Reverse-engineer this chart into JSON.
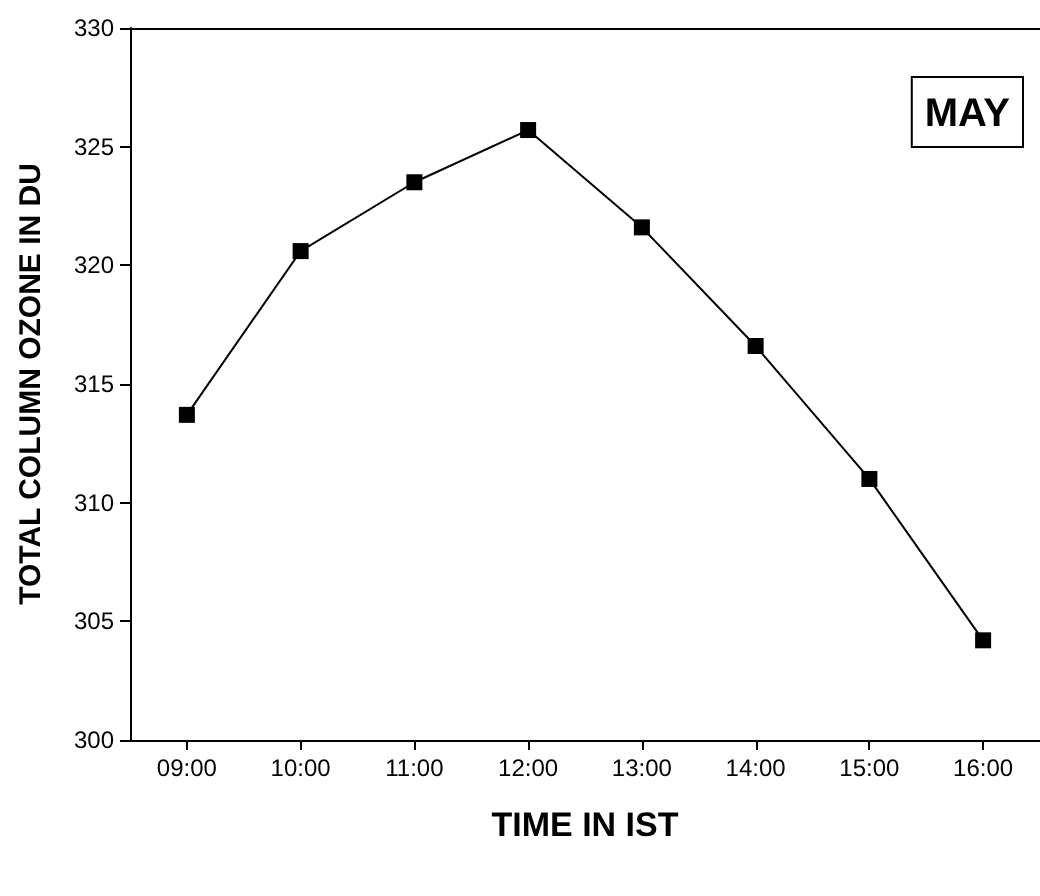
{
  "chart_data": {
    "type": "line",
    "xlabel": "TIME IN IST",
    "ylabel": "TOTAL COLUMN OZONE IN DU",
    "categories": [
      "09:00",
      "10:00",
      "11:00",
      "12:00",
      "13:00",
      "14:00",
      "15:00",
      "16:00"
    ],
    "series": [
      {
        "color": "#000000",
        "values": [
          313.7,
          320.6,
          323.5,
          325.7,
          321.6,
          316.6,
          311.0,
          304.2
        ]
      }
    ],
    "ylim": [
      300,
      330
    ],
    "yticks": [
      300,
      305,
      310,
      315,
      320,
      325,
      330
    ],
    "annotations": [
      "MAY"
    ],
    "marker": "square",
    "line_style": "solid"
  }
}
